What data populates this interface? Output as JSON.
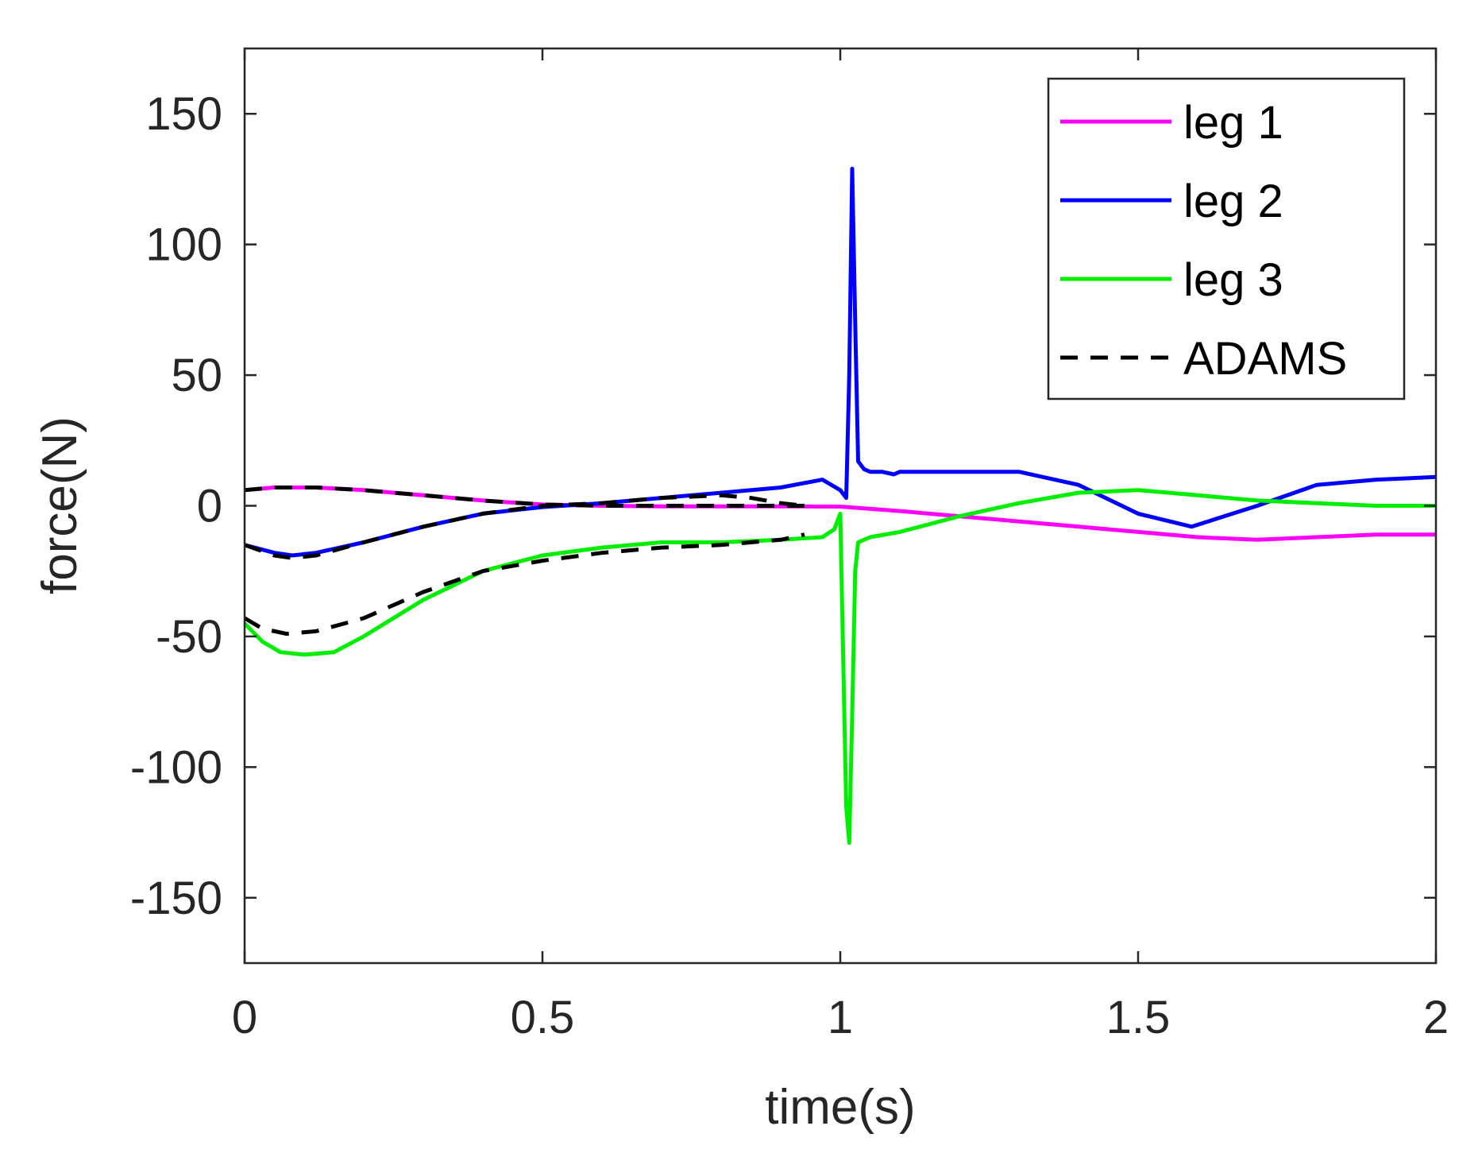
{
  "chart_data": {
    "type": "line",
    "title": "",
    "xlabel": "time(s)",
    "ylabel": "force(N)",
    "xlim": [
      0,
      2
    ],
    "ylim": [
      -175,
      175
    ],
    "xticks": [
      0,
      0.5,
      1,
      1.5,
      2
    ],
    "xtick_labels": [
      "0",
      "0.5",
      "1",
      "1.5",
      "2"
    ],
    "yticks": [
      150,
      100,
      50,
      0,
      -50,
      -100,
      -150
    ],
    "ytick_labels": [
      "150",
      "100",
      "50",
      "0",
      "-50",
      "-100",
      "-150"
    ],
    "grid": false,
    "legend": {
      "position": "top-right",
      "entries": [
        "leg 1",
        "leg 2",
        "leg 3",
        "ADAMS"
      ]
    },
    "series": [
      {
        "name": "leg 1",
        "color": "#ff00ff",
        "style": "solid",
        "x": [
          0,
          0.05,
          0.08,
          0.12,
          0.2,
          0.3,
          0.4,
          0.5,
          0.6,
          0.7,
          0.8,
          0.9,
          1.0,
          1.1,
          1.2,
          1.3,
          1.4,
          1.5,
          1.6,
          1.7,
          1.8,
          1.9,
          2.0
        ],
        "y": [
          6,
          7,
          7,
          7,
          6,
          4,
          2,
          0.5,
          0,
          -0.2,
          -0.2,
          -0.2,
          -0.3,
          -2,
          -4,
          -6,
          -8,
          -10,
          -12,
          -13,
          -12,
          -11,
          -11
        ]
      },
      {
        "name": "leg 2",
        "color": "#0000ff",
        "style": "solid",
        "x": [
          0,
          0.05,
          0.08,
          0.12,
          0.2,
          0.3,
          0.4,
          0.5,
          0.6,
          0.7,
          0.8,
          0.9,
          0.97,
          1.0,
          1.01,
          1.015,
          1.02,
          1.025,
          1.03,
          1.04,
          1.05,
          1.07,
          1.09,
          1.1,
          1.2,
          1.3,
          1.4,
          1.5,
          1.59,
          1.7,
          1.8,
          1.9,
          2.0
        ],
        "y": [
          -15,
          -18,
          -19,
          -18,
          -14,
          -8,
          -3,
          -0.5,
          1,
          3,
          5,
          7,
          10,
          6,
          3,
          50,
          129,
          70,
          17,
          14,
          13,
          13,
          12,
          13,
          13,
          13,
          8,
          -3,
          -8,
          0,
          8,
          10,
          11
        ]
      },
      {
        "name": "leg 3",
        "color": "#00ee00",
        "style": "solid",
        "x": [
          0,
          0.03,
          0.06,
          0.1,
          0.15,
          0.2,
          0.3,
          0.4,
          0.5,
          0.6,
          0.7,
          0.8,
          0.9,
          0.97,
          0.99,
          1.0,
          1.005,
          1.01,
          1.015,
          1.02,
          1.025,
          1.03,
          1.05,
          1.1,
          1.2,
          1.3,
          1.4,
          1.5,
          1.6,
          1.7,
          1.8,
          1.9,
          2.0
        ],
        "y": [
          -45,
          -52,
          -56,
          -57,
          -56,
          -50,
          -36,
          -25,
          -19,
          -16,
          -14,
          -14,
          -13,
          -12,
          -9,
          -3,
          -60,
          -115,
          -129,
          -80,
          -25,
          -14,
          -12,
          -10,
          -4,
          1,
          5,
          6,
          4,
          2,
          1,
          0,
          0
        ]
      },
      {
        "name": "ADAMS",
        "color": "#000000",
        "style": "dashed",
        "segments": [
          {
            "x": [
              0,
              0.05,
              0.08,
              0.12,
              0.2,
              0.3,
              0.4,
              0.5,
              0.6,
              0.7,
              0.8,
              0.85,
              0.9,
              0.94
            ],
            "y": [
              6,
              7,
              7,
              7,
              6,
              4,
              2,
              0.5,
              0,
              0,
              0,
              0,
              0,
              0
            ]
          },
          {
            "x": [
              0,
              0.05,
              0.08,
              0.12,
              0.2,
              0.3,
              0.4,
              0.5,
              0.6,
              0.7,
              0.8,
              0.85,
              0.9,
              0.94
            ],
            "y": [
              -15,
              -19,
              -20,
              -19,
              -14,
              -8,
              -3,
              0,
              1,
              3,
              4,
              3,
              1,
              0
            ]
          },
          {
            "x": [
              0,
              0.03,
              0.07,
              0.12,
              0.2,
              0.3,
              0.4,
              0.5,
              0.6,
              0.7,
              0.8,
              0.85,
              0.9,
              0.94
            ],
            "y": [
              -43,
              -47,
              -49,
              -48,
              -43,
              -33,
              -25,
              -21,
              -18,
              -16,
              -15,
              -14,
              -13,
              -11
            ]
          }
        ]
      }
    ]
  }
}
